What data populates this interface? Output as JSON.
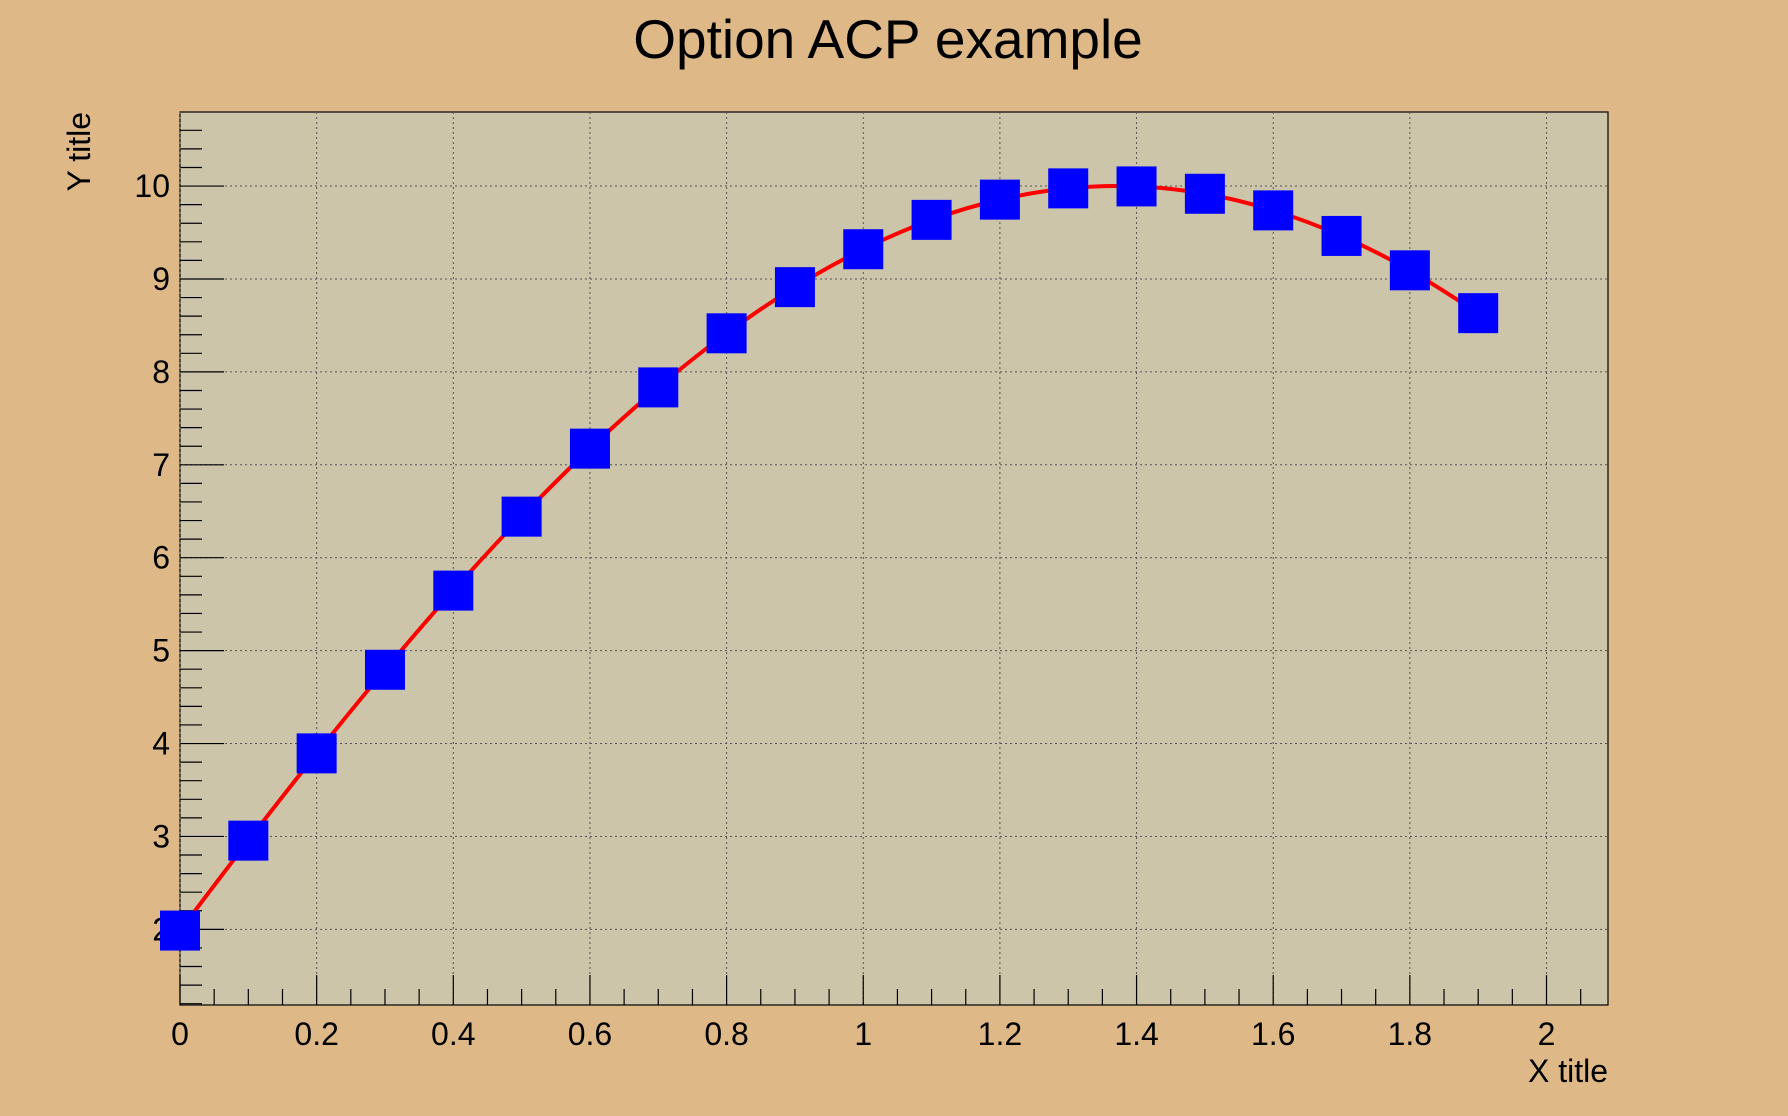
{
  "chart_data": {
    "type": "line",
    "title": "Option ACP example",
    "x_label": "X title",
    "y_label": "Y title",
    "x": [
      0,
      0.1,
      0.2,
      0.3,
      0.4,
      0.5,
      0.6,
      0.7,
      0.8,
      0.9,
      1.0,
      1.1,
      1.2,
      1.3,
      1.4,
      1.5,
      1.6,
      1.7,
      1.8,
      1.9
    ],
    "series": [
      {
        "color": "#ff0000",
        "marker_color": "#0000ff",
        "values": [
          1.987,
          2.955,
          3.894,
          4.794,
          5.646,
          6.442,
          7.174,
          7.833,
          8.415,
          8.912,
          9.32,
          9.636,
          9.854,
          9.975,
          9.996,
          9.917,
          9.738,
          9.463,
          9.093,
          8.632
        ]
      }
    ],
    "xlim": [
      0,
      2.09
    ],
    "ylim": [
      1.186,
      10.797
    ],
    "xticks": [
      0,
      0.2,
      0.4,
      0.6,
      0.8,
      1,
      1.2,
      1.4,
      1.6,
      1.8,
      2
    ],
    "yticks": [
      2,
      3,
      4,
      5,
      6,
      7,
      8,
      9,
      10
    ],
    "grid": true
  }
}
